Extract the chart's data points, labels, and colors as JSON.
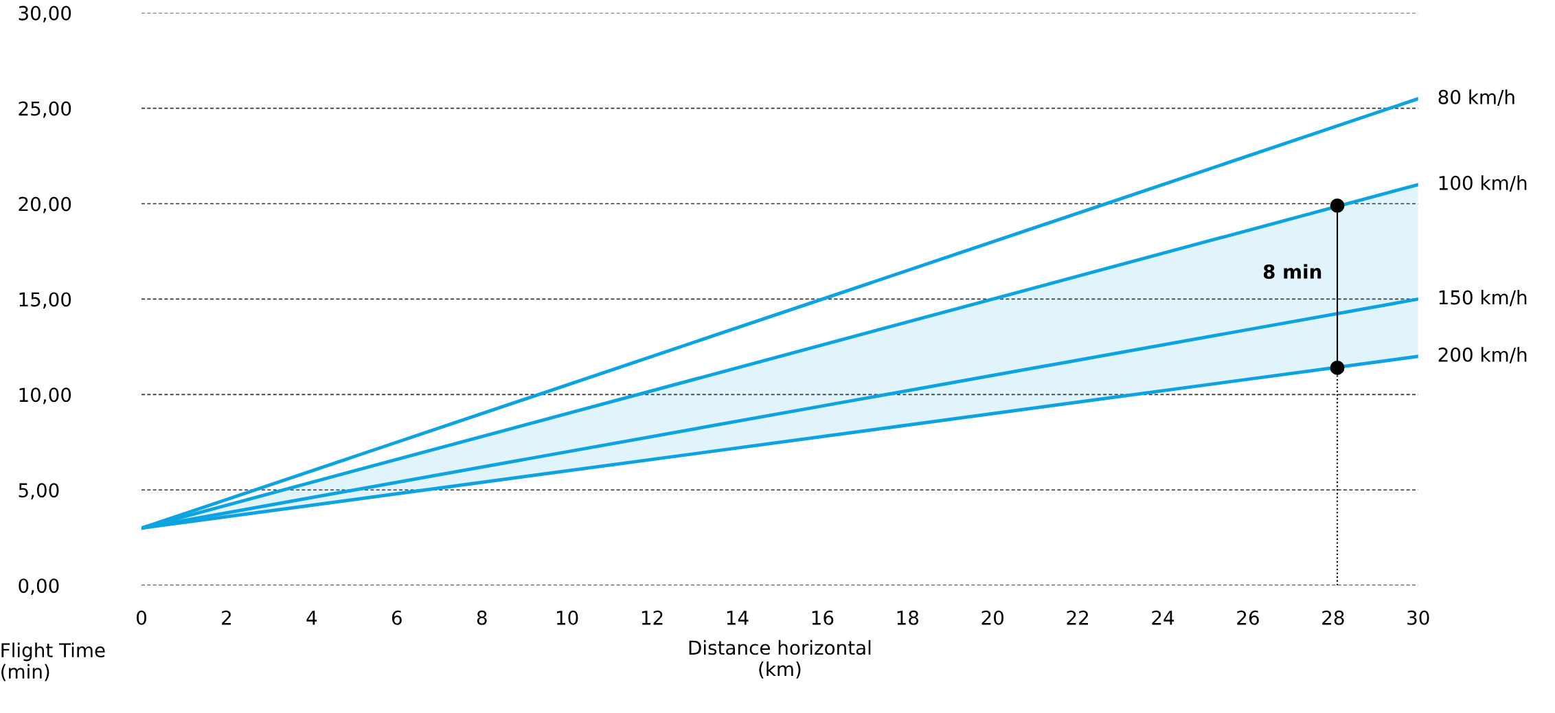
{
  "chart_data": {
    "type": "line",
    "xlabel": "Distance horizontal\n(km)",
    "ylabel": "Flight Time\n(min)",
    "xlim": [
      0,
      30
    ],
    "ylim": [
      0,
      30
    ],
    "xticks": [
      0,
      2,
      4,
      6,
      8,
      10,
      12,
      14,
      16,
      18,
      20,
      22,
      24,
      26,
      28,
      30
    ],
    "yticks": [
      {
        "value": 0,
        "label": "0,00"
      },
      {
        "value": 5,
        "label": "5,00"
      },
      {
        "value": 10,
        "label": "10,00"
      },
      {
        "value": 15,
        "label": "15,00"
      },
      {
        "value": 20,
        "label": "20,00"
      },
      {
        "value": 25,
        "label": "25,00"
      },
      {
        "value": 30,
        "label": "30,00"
      }
    ],
    "grid": "y",
    "legend": false,
    "series": [
      {
        "name": "80 km/h",
        "color": "#0ca3e0",
        "x": [
          0,
          30
        ],
        "values": [
          3,
          25.5
        ]
      },
      {
        "name": "100 km/h",
        "color": "#0ca3e0",
        "x": [
          0,
          30
        ],
        "values": [
          3,
          21
        ]
      },
      {
        "name": "150 km/h",
        "color": "#0ca3e0",
        "x": [
          0,
          30
        ],
        "values": [
          3,
          15
        ],
        "lower": [
          3,
          12
        ],
        "upper": [
          3,
          21
        ]
      },
      {
        "name": "200 km/h",
        "color": "#0ca3e0",
        "x": [
          0,
          30
        ],
        "values": [
          3,
          12
        ]
      },
      {
        "color": "#000000",
        "x": [
          28.1,
          28.1
        ],
        "values": [
          11.4,
          19.9
        ],
        "marker": "circle"
      },
      {
        "color": "#000000",
        "x": [
          28.1,
          28.1
        ],
        "values": [
          0,
          11.4
        ],
        "line_style": "dotted"
      }
    ],
    "annotations": [
      "8 min"
    ]
  }
}
